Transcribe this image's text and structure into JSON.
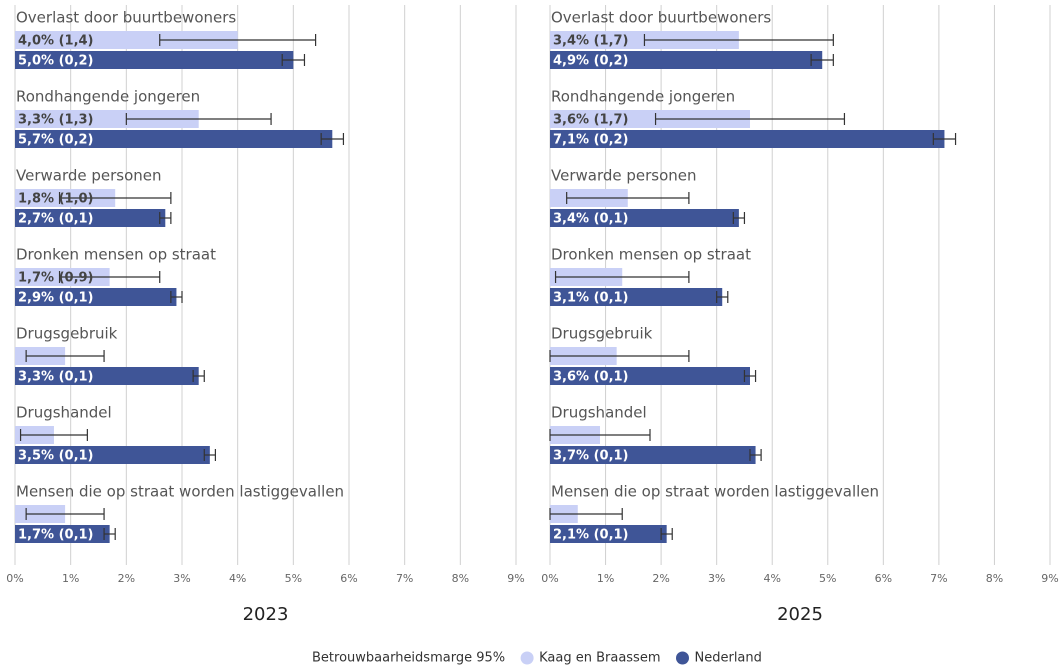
{
  "chart_data": [
    {
      "type": "bar",
      "orientation": "horizontal",
      "title": "2023",
      "categories": [
        "Overlast door buurtbewoners",
        "Rondhangende jongeren",
        "Verwarde personen",
        "Dronken mensen op straat",
        "Drugsgebruik",
        "Drugshandel",
        "Mensen die op straat worden lastiggevallen"
      ],
      "series": [
        {
          "name": "Kaag en Braassem",
          "color": "#c9d0f6",
          "values": [
            4.0,
            3.3,
            1.8,
            1.7,
            0.9,
            0.7,
            0.9
          ],
          "errors": [
            1.4,
            1.3,
            1.0,
            0.9,
            0.7,
            0.6,
            0.7
          ],
          "value_labels": [
            "4,0% (1,4)",
            "3,3% (1,3)",
            "1,8% (1,0)",
            "1,7% (0,9)",
            null,
            null,
            null
          ]
        },
        {
          "name": "Nederland",
          "color": "#3f5597",
          "values": [
            5.0,
            5.7,
            2.7,
            2.9,
            3.3,
            3.5,
            1.7
          ],
          "errors": [
            0.2,
            0.2,
            0.1,
            0.1,
            0.1,
            0.1,
            0.1
          ],
          "value_labels": [
            "5,0% (0,2)",
            "5,7% (0,2)",
            "2,7% (0,1)",
            "2,9% (0,1)",
            "3,3% (0,1)",
            "3,5% (0,1)",
            "1,7% (0,1)"
          ]
        }
      ],
      "xlim": [
        0,
        9
      ],
      "xticks": [
        {
          "value": 0,
          "label": "0%"
        },
        {
          "value": 1,
          "label": "1%"
        },
        {
          "value": 2,
          "label": "2%"
        },
        {
          "value": 3,
          "label": "3%"
        },
        {
          "value": 4,
          "label": "4%"
        },
        {
          "value": 5,
          "label": "5%"
        },
        {
          "value": 6,
          "label": "6%"
        },
        {
          "value": 7,
          "label": "7%"
        },
        {
          "value": 8,
          "label": "8%"
        },
        {
          "value": 9,
          "label": "9%"
        }
      ],
      "grid": true
    },
    {
      "type": "bar",
      "orientation": "horizontal",
      "title": "2025",
      "categories": [
        "Overlast door buurtbewoners",
        "Rondhangende jongeren",
        "Verwarde personen",
        "Dronken mensen op straat",
        "Drugsgebruik",
        "Drugshandel",
        "Mensen die op straat worden lastiggevallen"
      ],
      "series": [
        {
          "name": "Kaag en Braassem",
          "color": "#c9d0f6",
          "values": [
            3.4,
            3.6,
            1.4,
            1.3,
            1.2,
            0.9,
            0.5
          ],
          "errors": [
            1.7,
            1.7,
            1.1,
            1.2,
            1.3,
            0.9,
            0.8
          ],
          "value_labels": [
            "3,4% (1,7)",
            "3,6% (1,7)",
            null,
            null,
            null,
            null,
            null
          ]
        },
        {
          "name": "Nederland",
          "color": "#3f5597",
          "values": [
            4.9,
            7.1,
            3.4,
            3.1,
            3.6,
            3.7,
            2.1
          ],
          "errors": [
            0.2,
            0.2,
            0.1,
            0.1,
            0.1,
            0.1,
            0.1
          ],
          "value_labels": [
            "4,9% (0,2)",
            "7,1% (0,2)",
            "3,4% (0,1)",
            "3,1% (0,1)",
            "3,6% (0,1)",
            "3,7% (0,1)",
            "2,1% (0,1)"
          ]
        }
      ],
      "xlim": [
        0,
        9
      ],
      "xticks": [
        {
          "value": 0,
          "label": "0%"
        },
        {
          "value": 1,
          "label": "1%"
        },
        {
          "value": 2,
          "label": "2%"
        },
        {
          "value": 3,
          "label": "3%"
        },
        {
          "value": 4,
          "label": "4%"
        },
        {
          "value": 5,
          "label": "5%"
        },
        {
          "value": 6,
          "label": "6%"
        },
        {
          "value": 7,
          "label": "7%"
        },
        {
          "value": 8,
          "label": "8%"
        },
        {
          "value": 9,
          "label": "9%"
        }
      ],
      "grid": true
    }
  ],
  "legend": {
    "title": "Betrouwbaarheidsmarge 95%",
    "position": "bottom"
  }
}
